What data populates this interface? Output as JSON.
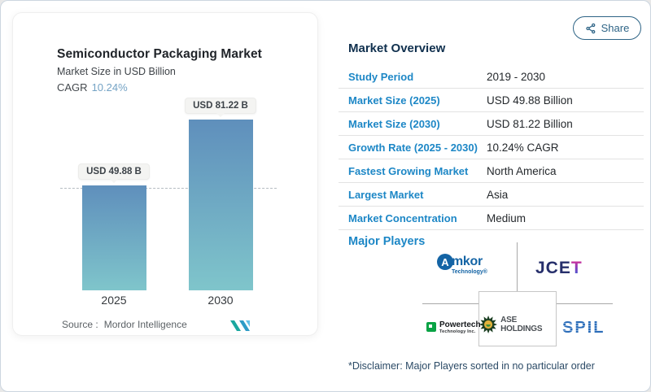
{
  "window": {
    "share_label": "Share"
  },
  "chart_card": {
    "title": "Semiconductor Packaging Market",
    "subtitle": "Market Size in USD Billion",
    "cagr_label": "CAGR",
    "cagr_value": "10.24%",
    "source_label": "Source :",
    "source_value": "Mordor Intelligence"
  },
  "chart_data": {
    "type": "bar",
    "categories": [
      "2025",
      "2030"
    ],
    "values": [
      49.88,
      81.22
    ],
    "value_labels": [
      "USD 49.88 B",
      "USD 81.22 B"
    ],
    "title": "Semiconductor Packaging Market",
    "ylabel": "Market Size in USD Billion",
    "cagr": "10.24%",
    "reference_line_at": 49.88,
    "ylim": [
      0,
      81.22
    ],
    "grid": false,
    "legend_position": "none",
    "bar_gradient_top": "#5f8fbc",
    "bar_gradient_bottom": "#7fc5cb"
  },
  "overview": {
    "heading": "Market Overview",
    "rows": [
      {
        "label": "Study Period",
        "value": "2019 - 2030"
      },
      {
        "label": "Market Size (2025)",
        "value": "USD 49.88 Billion"
      },
      {
        "label": "Market Size (2030)",
        "value": "USD 81.22 Billion"
      },
      {
        "label": "Growth Rate (2025 - 2030)",
        "value": "10.24% CAGR"
      },
      {
        "label": "Fastest Growing Market",
        "value": "North America"
      },
      {
        "label": "Largest Market",
        "value": "Asia"
      },
      {
        "label": "Market Concentration",
        "value": "Medium"
      }
    ]
  },
  "major_players": {
    "heading": "Major Players",
    "players": [
      "Amkor Technology",
      "JCET",
      "Powertech Technology Inc.",
      "ASE Holdings",
      "SPIL"
    ],
    "disclaimer": "*Disclaimer: Major Players sorted in no particular order",
    "logos": {
      "amkor_initial": "A",
      "amkor_rest": "mkor",
      "amkor_sub": "Technology®",
      "jcet_main": "JCE",
      "jcet_accent": "T",
      "powertech_line1": "Powertech",
      "powertech_line2": "Technology Inc.",
      "ase_text": "ASE HOLDINGS",
      "spil_text": "SPIL"
    }
  },
  "colors": {
    "accent_blue": "#1d87c6",
    "heading_navy": "#10304e",
    "share_teal": "#2e6486",
    "cagr_value_blue": "#74a3c5",
    "bar_gradient_top": "#5f8fbc",
    "bar_gradient_bottom": "#7fc5cb"
  },
  "icons": {
    "share": "share-nodes-icon",
    "brand": "mordor-intelligence-logo",
    "ase": "gear-starburst-icon",
    "powertech": "green-square-icon"
  }
}
